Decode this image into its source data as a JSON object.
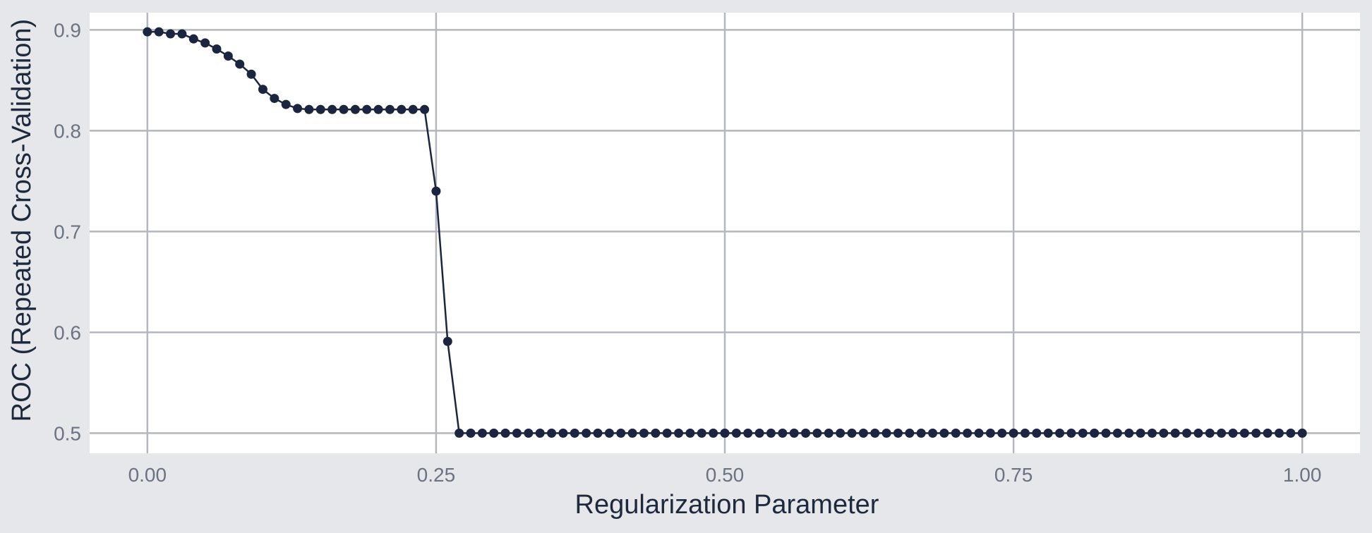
{
  "chart_data": {
    "type": "line",
    "xlabel": "Regularization Parameter",
    "ylabel": "ROC (Repeated Cross-Validation)",
    "xlim": [
      -0.05,
      1.05
    ],
    "ylim": [
      0.48,
      0.917
    ],
    "x_ticks": [
      0.0,
      0.25,
      0.5,
      0.75,
      1.0
    ],
    "x_tick_labels": [
      "0.00",
      "0.25",
      "0.50",
      "0.75",
      "1.00"
    ],
    "y_ticks": [
      0.5,
      0.6,
      0.7,
      0.8,
      0.9
    ],
    "y_tick_labels": [
      "0.5",
      "0.6",
      "0.7",
      "0.8",
      "0.9"
    ],
    "grid": true,
    "markers": true,
    "colors": {
      "page_background": "#e5e7eb",
      "panel_background": "#ffffff",
      "grid": "#b4b7bd",
      "line": "#1b2540",
      "tick_label": "#6b7280",
      "axis_title": "#1e293b"
    },
    "series": [
      {
        "x": [
          0.0,
          0.01,
          0.02,
          0.03,
          0.04,
          0.05,
          0.06,
          0.07,
          0.08,
          0.09,
          0.1,
          0.11,
          0.12,
          0.13,
          0.14,
          0.15,
          0.16,
          0.17,
          0.18,
          0.19,
          0.2,
          0.21,
          0.22,
          0.23,
          0.24,
          0.25,
          0.26,
          0.27,
          0.28,
          0.29,
          0.3,
          0.31,
          0.32,
          0.33,
          0.34,
          0.35,
          0.36,
          0.37,
          0.38,
          0.39,
          0.4,
          0.41,
          0.42,
          0.43,
          0.44,
          0.45,
          0.46,
          0.47,
          0.48,
          0.49,
          0.5,
          0.51,
          0.52,
          0.53,
          0.54,
          0.55,
          0.56,
          0.57,
          0.58,
          0.59,
          0.6,
          0.61,
          0.62,
          0.63,
          0.64,
          0.65,
          0.66,
          0.67,
          0.68,
          0.69,
          0.7,
          0.71,
          0.72,
          0.73,
          0.74,
          0.75,
          0.76,
          0.77,
          0.78,
          0.79,
          0.8,
          0.81,
          0.82,
          0.83,
          0.84,
          0.85,
          0.86,
          0.87,
          0.88,
          0.89,
          0.9,
          0.91,
          0.92,
          0.93,
          0.94,
          0.95,
          0.96,
          0.97,
          0.98,
          0.99,
          1.0
        ],
        "values": [
          0.898,
          0.898,
          0.896,
          0.896,
          0.891,
          0.887,
          0.881,
          0.874,
          0.866,
          0.856,
          0.841,
          0.832,
          0.826,
          0.822,
          0.821,
          0.821,
          0.821,
          0.821,
          0.821,
          0.821,
          0.821,
          0.821,
          0.821,
          0.821,
          0.821,
          0.74,
          0.591,
          0.5,
          0.5,
          0.5,
          0.5,
          0.5,
          0.5,
          0.5,
          0.5,
          0.5,
          0.5,
          0.5,
          0.5,
          0.5,
          0.5,
          0.5,
          0.5,
          0.5,
          0.5,
          0.5,
          0.5,
          0.5,
          0.5,
          0.5,
          0.5,
          0.5,
          0.5,
          0.5,
          0.5,
          0.5,
          0.5,
          0.5,
          0.5,
          0.5,
          0.5,
          0.5,
          0.5,
          0.5,
          0.5,
          0.5,
          0.5,
          0.5,
          0.5,
          0.5,
          0.5,
          0.5,
          0.5,
          0.5,
          0.5,
          0.5,
          0.5,
          0.5,
          0.5,
          0.5,
          0.5,
          0.5,
          0.5,
          0.5,
          0.5,
          0.5,
          0.5,
          0.5,
          0.5,
          0.5,
          0.5,
          0.5,
          0.5,
          0.5,
          0.5,
          0.5,
          0.5,
          0.5,
          0.5,
          0.5,
          0.5
        ]
      }
    ]
  }
}
